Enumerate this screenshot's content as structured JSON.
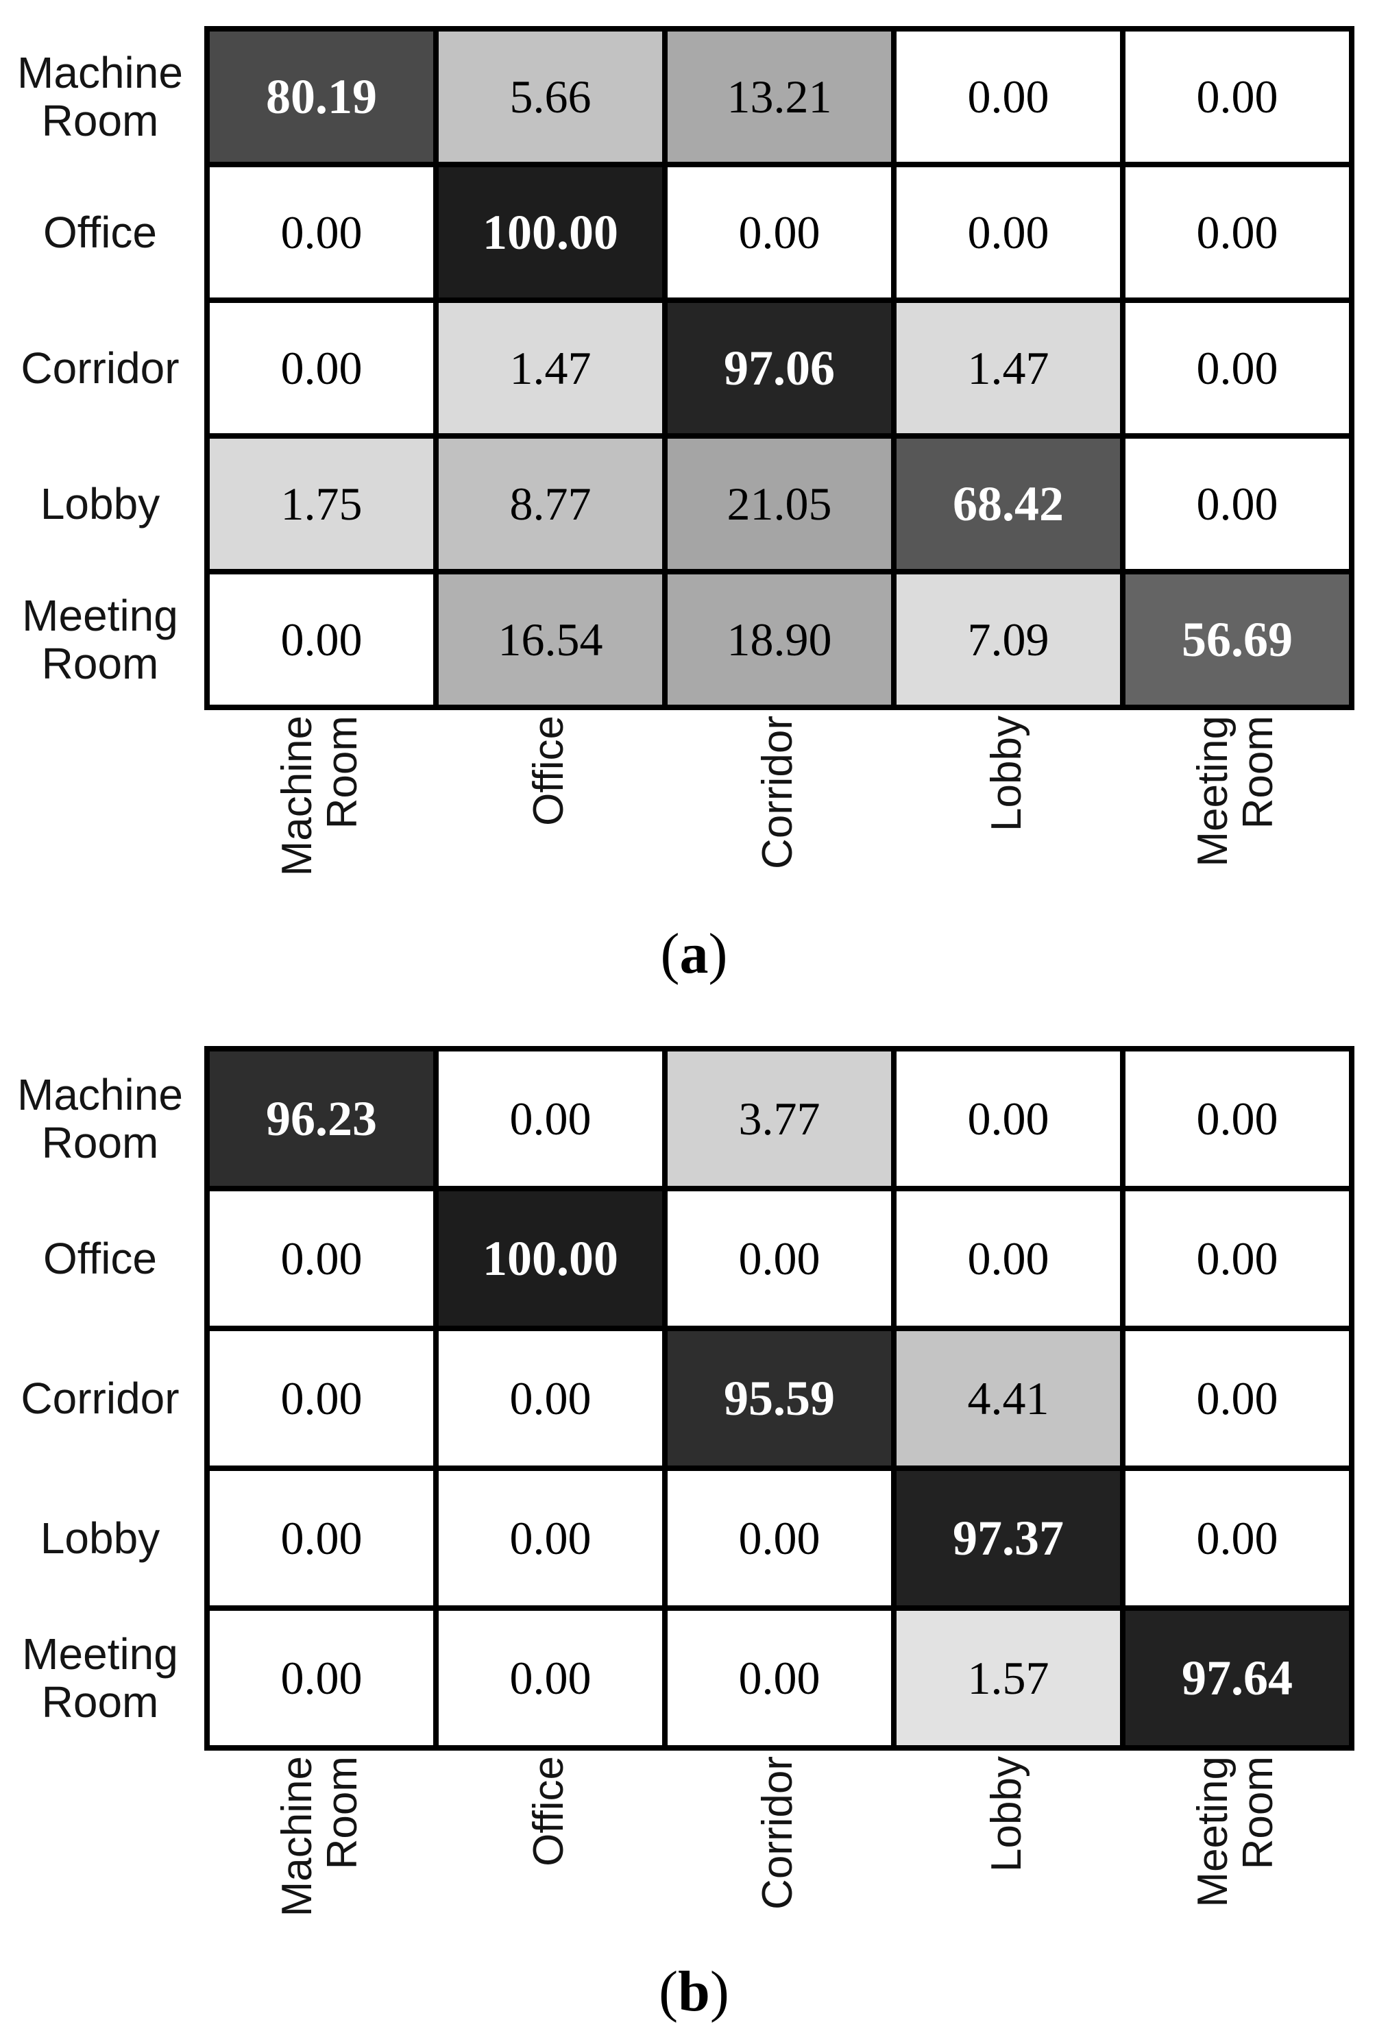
{
  "chart_data": [
    {
      "type": "heatmap",
      "caption": "(a)",
      "row_axis_labels": [
        "Machine Room",
        "Office",
        "Corridor",
        "Lobby",
        "Meeting Room"
      ],
      "col_axis_labels": [
        "Machine Room",
        "Office",
        "Corridor",
        "Lobby",
        "Meeting Room"
      ],
      "values": [
        [
          80.19,
          5.66,
          13.21,
          0.0,
          0.0
        ],
        [
          0.0,
          100.0,
          0.0,
          0.0,
          0.0
        ],
        [
          0.0,
          1.47,
          97.06,
          1.47,
          0.0
        ],
        [
          1.75,
          8.77,
          21.05,
          68.42,
          0.0
        ],
        [
          0.0,
          16.54,
          18.9,
          7.09,
          56.69
        ]
      ],
      "value_range": [
        0,
        100
      ],
      "colormap": "white-to-black (higher value = darker cell)",
      "legend": "none",
      "grid": "thick black cell borders"
    },
    {
      "type": "heatmap",
      "caption": "(b)",
      "row_axis_labels": [
        "Machine Room",
        "Office",
        "Corridor",
        "Lobby",
        "Meeting Room"
      ],
      "col_axis_labels": [
        "Machine Room",
        "Office",
        "Corridor",
        "Lobby",
        "Meeting Room"
      ],
      "values": [
        [
          96.23,
          0.0,
          3.77,
          0.0,
          0.0
        ],
        [
          0.0,
          100.0,
          0.0,
          0.0,
          0.0
        ],
        [
          0.0,
          0.0,
          95.59,
          4.41,
          0.0
        ],
        [
          0.0,
          0.0,
          0.0,
          97.37,
          0.0
        ],
        [
          0.0,
          0.0,
          0.0,
          1.57,
          97.64
        ]
      ],
      "value_range": [
        0,
        100
      ],
      "colormap": "white-to-black (higher value = darker cell)",
      "legend": "none",
      "grid": "thick black cell borders"
    }
  ],
  "colors": {
    "page_background": "#ffffff",
    "cell_border": "#000000",
    "label_text": "#141414",
    "cell_text": "#000000",
    "diagonal_cell_text": "#ffffff"
  },
  "figures": {
    "a": {
      "caption": {
        "open": "(",
        "letter": "a",
        "close": ")"
      },
      "row_labels": [
        [
          "Machine",
          "Room"
        ],
        [
          "Office"
        ],
        [
          "Corridor"
        ],
        [
          "Lobby"
        ],
        [
          "Meeting",
          "Room"
        ]
      ],
      "col_labels": [
        [
          "Machine",
          "Room"
        ],
        [
          "Office"
        ],
        [
          "Corridor"
        ],
        [
          "Lobby"
        ],
        [
          "Meeting",
          "Room"
        ]
      ],
      "values_text": [
        [
          "80.19",
          "5.66",
          "13.21",
          "0.00",
          "0.00"
        ],
        [
          "0.00",
          "100.00",
          "0.00",
          "0.00",
          "0.00"
        ],
        [
          "0.00",
          "1.47",
          "97.06",
          "1.47",
          "0.00"
        ],
        [
          "1.75",
          "8.77",
          "21.05",
          "68.42",
          "0.00"
        ],
        [
          "0.00",
          "16.54",
          "18.90",
          "7.09",
          "56.69"
        ]
      ],
      "shades": [
        [
          "#4a4a4a",
          "#c2c2c2",
          "#a9a9a9",
          "#ffffff",
          "#ffffff"
        ],
        [
          "#ffffff",
          "#1d1d1d",
          "#ffffff",
          "#ffffff",
          "#ffffff"
        ],
        [
          "#ffffff",
          "#dadada",
          "#252525",
          "#dadada",
          "#ffffff"
        ],
        [
          "#d9d9d9",
          "#c1c1c1",
          "#a5a5a5",
          "#575757",
          "#ffffff"
        ],
        [
          "#ffffff",
          "#b1b1b1",
          "#a9a9a9",
          "#dcdcdc",
          "#646464"
        ]
      ]
    },
    "b": {
      "caption": {
        "open": "(",
        "letter": "b",
        "close": ")"
      },
      "row_labels": [
        [
          "Machine",
          "Room"
        ],
        [
          "Office"
        ],
        [
          "Corridor"
        ],
        [
          "Lobby"
        ],
        [
          "Meeting",
          "Room"
        ]
      ],
      "col_labels": [
        [
          "Machine",
          "Room"
        ],
        [
          "Office"
        ],
        [
          "Corridor"
        ],
        [
          "Lobby"
        ],
        [
          "Meeting",
          "Room"
        ]
      ],
      "values_text": [
        [
          "96.23",
          "0.00",
          "3.77",
          "0.00",
          "0.00"
        ],
        [
          "0.00",
          "100.00",
          "0.00",
          "0.00",
          "0.00"
        ],
        [
          "0.00",
          "0.00",
          "95.59",
          "4.41",
          "0.00"
        ],
        [
          "0.00",
          "0.00",
          "0.00",
          "97.37",
          "0.00"
        ],
        [
          "0.00",
          "0.00",
          "0.00",
          "1.57",
          "97.64"
        ]
      ],
      "shades": [
        [
          "#2e2e2e",
          "#ffffff",
          "#d1d1d1",
          "#ffffff",
          "#ffffff"
        ],
        [
          "#ffffff",
          "#1d1d1d",
          "#ffffff",
          "#ffffff",
          "#ffffff"
        ],
        [
          "#ffffff",
          "#ffffff",
          "#2e2e2e",
          "#c4c4c4",
          "#ffffff"
        ],
        [
          "#ffffff",
          "#ffffff",
          "#ffffff",
          "#222222",
          "#ffffff"
        ],
        [
          "#ffffff",
          "#ffffff",
          "#ffffff",
          "#e2e2e2",
          "#222222"
        ]
      ]
    }
  }
}
